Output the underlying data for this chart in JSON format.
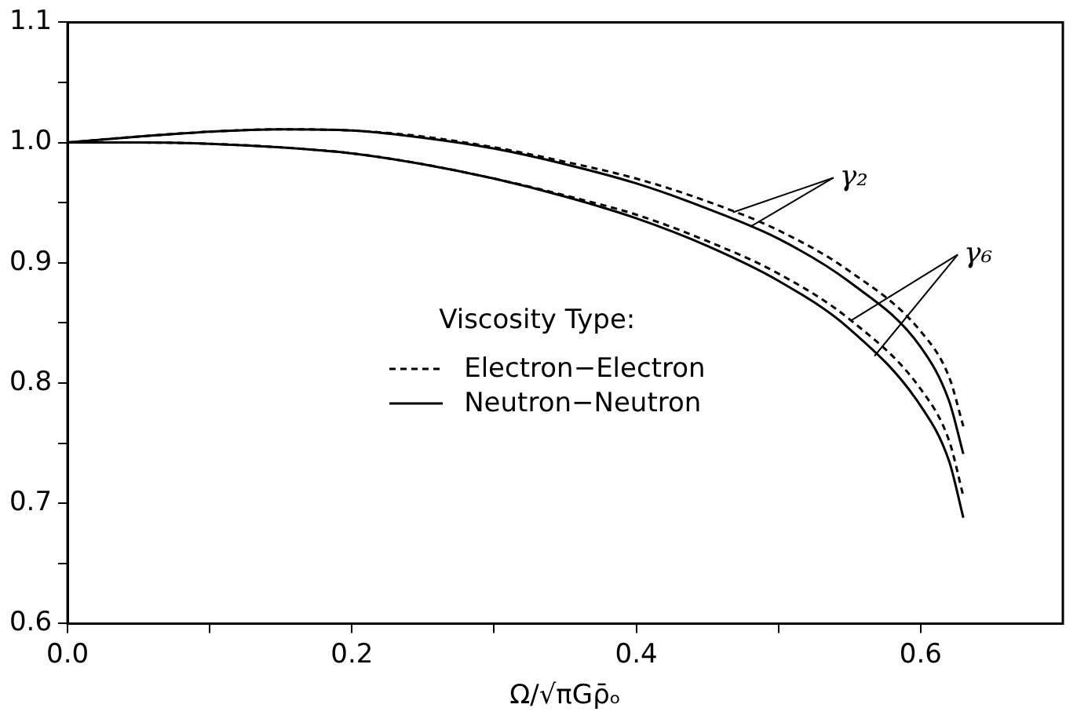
{
  "chart_data": {
    "type": "line",
    "xlabel": "Ω/√πGρ̄ₒ",
    "legend_title": "Viscosity Type:",
    "legend": "center",
    "grid": false,
    "marker": "none",
    "xlim": [
      0,
      0.7
    ],
    "xticks": [
      {
        "value": 0,
        "label": "0.0"
      },
      {
        "value": 0.1,
        "label": null
      },
      {
        "value": 0.2,
        "label": "0.2"
      },
      {
        "value": 0.3,
        "label": null
      },
      {
        "value": 0.4,
        "label": "0.4"
      },
      {
        "value": 0.5,
        "label": null
      },
      {
        "value": 0.6,
        "label": "0.6"
      }
    ],
    "ylim": [
      0.6,
      1.1
    ],
    "yticks": [
      {
        "value": 0.6,
        "label": "0.6"
      },
      {
        "value": 0.65,
        "label": null
      },
      {
        "value": 0.7,
        "label": "0.7"
      },
      {
        "value": 0.75,
        "label": null
      },
      {
        "value": 0.8,
        "label": "0.8"
      },
      {
        "value": 0.85,
        "label": null
      },
      {
        "value": 0.9,
        "label": "0.9"
      },
      {
        "value": 0.95,
        "label": null
      },
      {
        "value": 1.0,
        "label": "1.0"
      },
      {
        "value": 1.05,
        "label": null
      },
      {
        "value": 1.1,
        "label": "1.1"
      }
    ],
    "x": [
      0,
      0.05,
      0.1,
      0.15,
      0.2,
      0.25,
      0.3,
      0.35,
      0.4,
      0.45,
      0.5,
      0.55,
      0.6,
      0.62,
      0.63
    ],
    "series": [
      {
        "name": "Electron−Electron",
        "color": "#000000",
        "line_style": "dashed",
        "values": [
          1.0,
          1.005,
          1.009,
          1.011,
          1.01,
          1.005,
          0.996,
          0.984,
          0.97,
          0.951,
          0.927,
          0.893,
          0.843,
          0.805,
          0.764
        ]
      },
      {
        "name": "Neutron−Neutron",
        "color": "#000000",
        "line_style": "solid",
        "values": [
          1.0,
          1.005,
          1.009,
          1.011,
          1.01,
          1.004,
          0.995,
          0.982,
          0.966,
          0.945,
          0.92,
          0.884,
          0.83,
          0.785,
          0.741
        ]
      },
      {
        "color": "#000000",
        "line_style": "dashed",
        "values": [
          1.0,
          1.0,
          0.999,
          0.996,
          0.991,
          0.982,
          0.97,
          0.956,
          0.94,
          0.918,
          0.891,
          0.853,
          0.795,
          0.752,
          0.706
        ]
      },
      {
        "color": "#000000",
        "line_style": "solid",
        "values": [
          1.0,
          1.0,
          0.999,
          0.996,
          0.991,
          0.982,
          0.97,
          0.955,
          0.937,
          0.914,
          0.885,
          0.845,
          0.781,
          0.735,
          0.688
        ]
      }
    ],
    "annotations": [
      {
        "text": "γ₂",
        "x": 0.468,
        "y": 0.942
      },
      {
        "text": "γ₆",
        "x": 0.551,
        "y": 0.852
      }
    ]
  }
}
